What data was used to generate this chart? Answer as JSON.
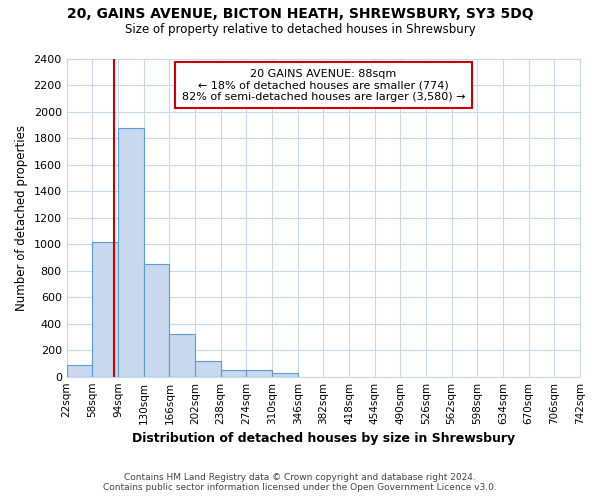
{
  "title1": "20, GAINS AVENUE, BICTON HEATH, SHREWSBURY, SY3 5DQ",
  "title2": "Size of property relative to detached houses in Shrewsbury",
  "xlabel": "Distribution of detached houses by size in Shrewsbury",
  "ylabel": "Number of detached properties",
  "footer1": "Contains HM Land Registry data © Crown copyright and database right 2024.",
  "footer2": "Contains public sector information licensed under the Open Government Licence v3.0.",
  "annotation_line1": "20 GAINS AVENUE: 88sqm",
  "annotation_line2": "← 18% of detached houses are smaller (774)",
  "annotation_line3": "82% of semi-detached houses are larger (3,580) →",
  "property_size": 88,
  "bin_edges": [
    22,
    58,
    94,
    130,
    166,
    202,
    238,
    274,
    310,
    346,
    382,
    418,
    454,
    490,
    526,
    562,
    598,
    634,
    670,
    706,
    742
  ],
  "bar_heights": [
    90,
    1020,
    1880,
    855,
    320,
    120,
    52,
    50,
    30,
    0,
    0,
    0,
    0,
    0,
    0,
    0,
    0,
    0,
    0,
    0
  ],
  "bar_color": "#c8d8ee",
  "bar_edge_color": "#5a9fd4",
  "vline_color": "#cc0000",
  "annotation_box_color": "#cc0000",
  "background_color": "#ffffff",
  "plot_bg_color": "#ffffff",
  "grid_color": "#c8d8ee",
  "ylim": [
    0,
    2400
  ],
  "yticks": [
    0,
    200,
    400,
    600,
    800,
    1000,
    1200,
    1400,
    1600,
    1800,
    2000,
    2200,
    2400
  ]
}
